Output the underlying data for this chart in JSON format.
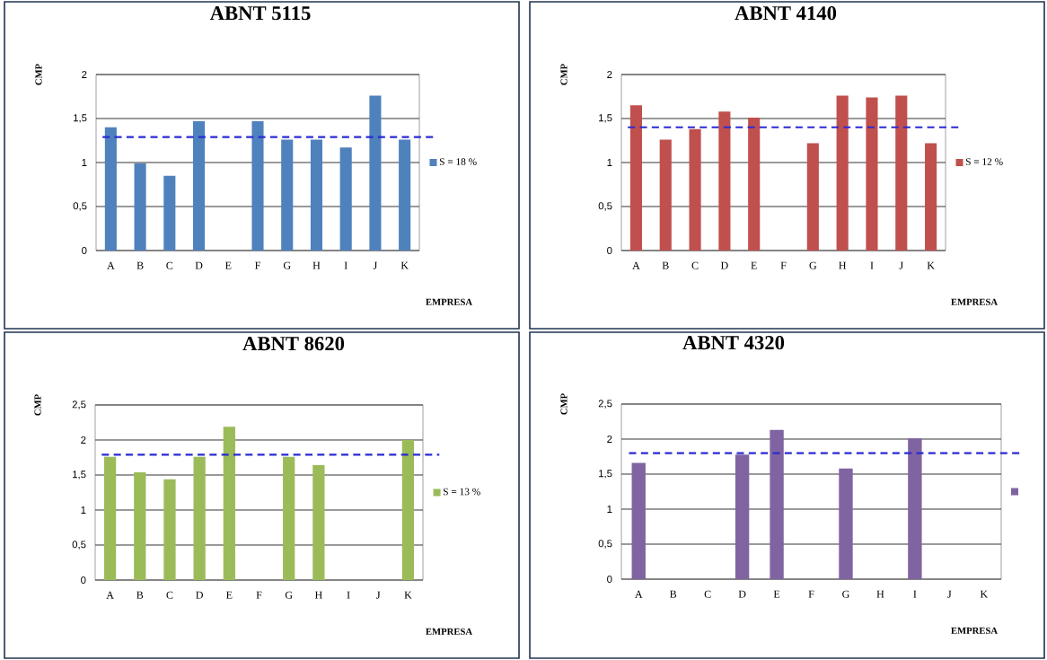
{
  "chart_data": [
    {
      "type": "bar",
      "title": "ABNT 5115",
      "xlabel": "EMPRESA",
      "ylabel": "CMP",
      "categories": [
        "A",
        "B",
        "C",
        "D",
        "E",
        "F",
        "G",
        "H",
        "I",
        "J",
        "K"
      ],
      "series": [
        {
          "name": "S = 18 %",
          "color": "#4f81bd",
          "values": [
            1.4,
            0.99,
            0.85,
            1.47,
            null,
            1.47,
            1.26,
            1.26,
            1.17,
            1.76,
            1.26
          ]
        }
      ],
      "ylim": [
        0,
        2
      ],
      "yticks": [
        0,
        {
          "value": 0.5,
          "label": "0,5"
        },
        1,
        {
          "value": 1.5,
          "label": "1,5"
        },
        2
      ],
      "grid": "y",
      "legend": "right",
      "ref_lines": [
        {
          "axis": "y",
          "value": 1.29,
          "color": "#2a2ad4",
          "line_style": "dashed"
        }
      ]
    },
    {
      "type": "bar",
      "title": "ABNT 4140",
      "xlabel": "EMPRESA",
      "ylabel": "CMP",
      "categories": [
        "A",
        "B",
        "C",
        "D",
        "E",
        "F",
        "G",
        "H",
        "I",
        "J",
        "K"
      ],
      "series": [
        {
          "name": "S = 12 %",
          "color": "#c0504d",
          "values": [
            1.65,
            1.26,
            1.38,
            1.58,
            1.51,
            null,
            1.22,
            1.76,
            1.74,
            1.76,
            1.22
          ]
        }
      ],
      "ylim": [
        0,
        2
      ],
      "yticks": [
        0,
        {
          "value": 0.5,
          "label": "0,5"
        },
        1,
        {
          "value": 1.5,
          "label": "1,5"
        },
        2
      ],
      "grid": "y",
      "legend": "right",
      "ref_lines": [
        {
          "axis": "y",
          "value": 1.4,
          "color": "#2a2ad4",
          "line_style": "dashed"
        }
      ]
    },
    {
      "type": "bar",
      "title": "ABNT 8620",
      "xlabel": "EMPRESA",
      "ylabel": "CMP",
      "categories": [
        "A",
        "B",
        "C",
        "D",
        "E",
        "F",
        "G",
        "H",
        "I",
        "J",
        "K"
      ],
      "series": [
        {
          "name": "S = 13 %",
          "color": "#9bbb59",
          "values": [
            1.76,
            1.54,
            1.44,
            1.76,
            2.19,
            null,
            1.76,
            1.64,
            null,
            null,
            2.0
          ]
        }
      ],
      "ylim": [
        0,
        2.5
      ],
      "yticks": [
        0,
        {
          "value": 0.5,
          "label": "0,5"
        },
        1,
        {
          "value": 1.5,
          "label": "1,5"
        },
        2,
        {
          "value": 2.5,
          "label": "2,5"
        }
      ],
      "grid": "y",
      "legend": "right",
      "ref_lines": [
        {
          "axis": "y",
          "value": 1.79,
          "color": "#2a2ad4",
          "line_style": "dashed"
        }
      ]
    },
    {
      "type": "bar",
      "title": "ABNT 4320",
      "xlabel": "EMPRESA",
      "ylabel": "CMP",
      "categories": [
        "A",
        "B",
        "C",
        "D",
        "E",
        "F",
        "G",
        "H",
        "I",
        "J",
        "K"
      ],
      "series": [
        {
          "color": "#8064a2",
          "values": [
            1.66,
            null,
            null,
            1.78,
            2.13,
            null,
            1.58,
            null,
            2.01,
            null,
            null
          ]
        }
      ],
      "ylim": [
        0,
        2.5
      ],
      "yticks": [
        0,
        {
          "value": 0.5,
          "label": "0,5"
        },
        1,
        {
          "value": 1.5,
          "label": "1,5"
        },
        2,
        {
          "value": 2.5,
          "label": "2,5"
        }
      ],
      "grid": "y",
      "ref_lines": [
        {
          "axis": "y",
          "value": 1.8,
          "color": "#2a2ad4",
          "line_style": "dashed"
        }
      ]
    }
  ]
}
